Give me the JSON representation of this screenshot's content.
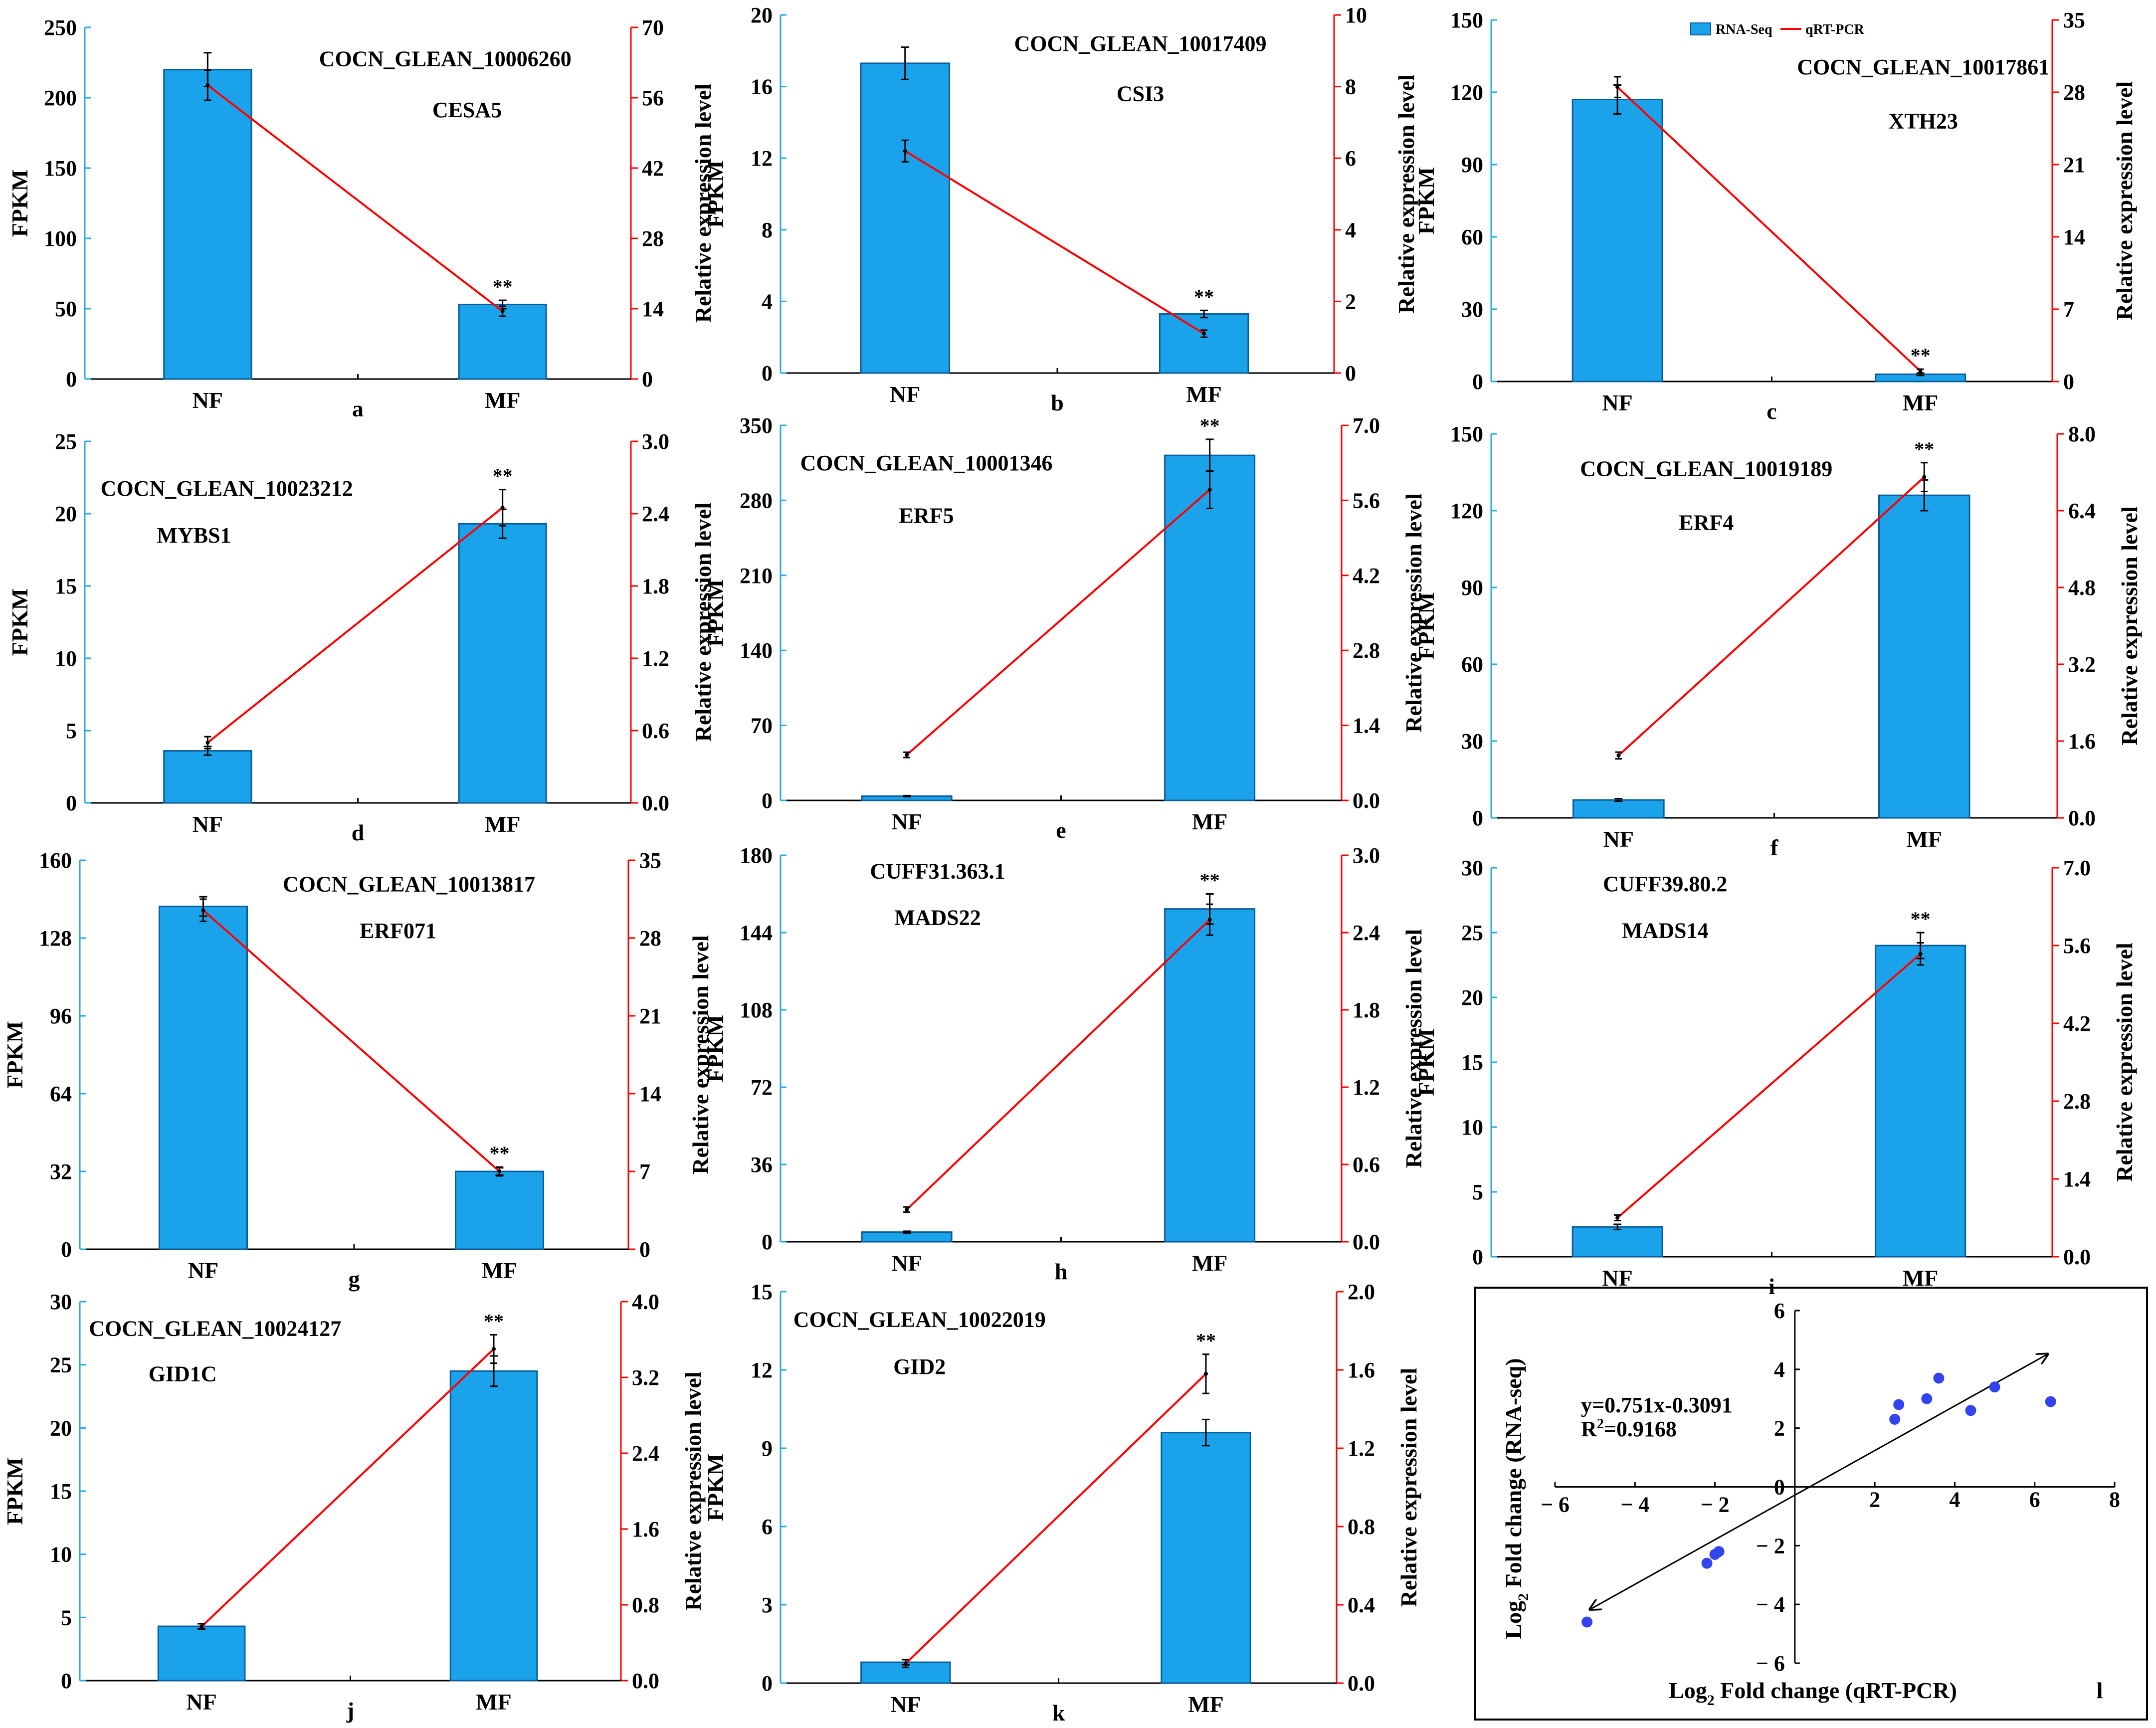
{
  "legend": {
    "bar_label": "RNA-Seq",
    "line_label": "qRT-PCR"
  },
  "colors": {
    "bar_fill": "#1aa3ea",
    "bar_stroke": "#0a5c9a",
    "line": "#ff0000",
    "left_axis": "#29a8e0",
    "right_axis": "#ff0000",
    "scatter_point": "#3344ee"
  },
  "chart_data": [
    {
      "panel": "a",
      "type": "bar+line",
      "gene_id": "COCN_GLEAN_10006260",
      "gene_name": "CESA5",
      "categories": [
        "NF",
        "MF"
      ],
      "ylabel": "FPKM",
      "y2label": "Relative expression level",
      "ylim": [
        0,
        250
      ],
      "yticks": [
        "0",
        "50",
        "100",
        "150",
        "200",
        "250"
      ],
      "y2lim": [
        0,
        70
      ],
      "y2ticks": [
        "0",
        "14",
        "28",
        "42",
        "56",
        "70"
      ],
      "bar_values": [
        220,
        53
      ],
      "bar_errors": [
        12,
        3
      ],
      "line_values": [
        58.5,
        13.5
      ],
      "line_errors": [
        3,
        1
      ],
      "significance": [
        "",
        "**"
      ]
    },
    {
      "panel": "b",
      "type": "bar+line",
      "gene_id": "COCN_GLEAN_10017409",
      "gene_name": "CSI3",
      "categories": [
        "NF",
        "MF"
      ],
      "ylabel": "FPKM",
      "y2label": "Relative expression level",
      "ylim": [
        0,
        20
      ],
      "yticks": [
        "0",
        "4",
        "8",
        "12",
        "16",
        "20"
      ],
      "y2lim": [
        0,
        10
      ],
      "y2ticks": [
        "0",
        "2",
        "4",
        "6",
        "8",
        "10"
      ],
      "bar_values": [
        17.3,
        3.3
      ],
      "bar_errors": [
        0.9,
        0.2
      ],
      "line_values": [
        6.2,
        1.1
      ],
      "line_errors": [
        0.3,
        0.1
      ],
      "significance": [
        "",
        "**"
      ]
    },
    {
      "panel": "c",
      "type": "bar+line",
      "gene_id": "COCN_GLEAN_10017861",
      "gene_name": "XTH23",
      "categories": [
        "NF",
        "MF"
      ],
      "ylabel": "FPKM",
      "y2label": "Relative expression level",
      "ylim": [
        0,
        150
      ],
      "yticks": [
        "0",
        "30",
        "60",
        "90",
        "120",
        "150"
      ],
      "y2lim": [
        0,
        35
      ],
      "y2ticks": [
        "0",
        "7",
        "14",
        "21",
        "28",
        "35"
      ],
      "bar_values": [
        117,
        3
      ],
      "bar_errors": [
        6,
        0.5
      ],
      "line_values": [
        28.5,
        1.0
      ],
      "line_errors": [
        1.0,
        0.2
      ],
      "significance": [
        "",
        "**"
      ]
    },
    {
      "panel": "d",
      "type": "bar+line",
      "gene_id": "COCN_GLEAN_10023212",
      "gene_name": "MYBS1",
      "categories": [
        "NF",
        "MF"
      ],
      "ylabel": "FPKM",
      "y2label": "Relative expression level",
      "ylim": [
        0,
        25
      ],
      "yticks": [
        "0",
        "5",
        "10",
        "15",
        "20",
        "25"
      ],
      "y2lim": [
        0,
        3.0
      ],
      "y2ticks": [
        "0.0",
        "0.6",
        "1.2",
        "1.8",
        "2.4",
        "3.0"
      ],
      "bar_values": [
        3.6,
        19.3
      ],
      "bar_errors": [
        0.3,
        1.0
      ],
      "line_values": [
        0.5,
        2.45
      ],
      "line_errors": [
        0.05,
        0.15
      ],
      "significance": [
        "",
        "**"
      ]
    },
    {
      "panel": "e",
      "type": "bar+line",
      "gene_id": "COCN_GLEAN_10001346",
      "gene_name": "ERF5",
      "categories": [
        "NF",
        "MF"
      ],
      "ylabel": "FPKM",
      "y2label": "Relative expression level",
      "ylim": [
        0,
        350
      ],
      "yticks": [
        "0",
        "70",
        "140",
        "210",
        "280",
        "350"
      ],
      "y2lim": [
        0,
        7.0
      ],
      "y2ticks": [
        "0.0",
        "1.4",
        "2.8",
        "4.2",
        "5.6",
        "7.0"
      ],
      "bar_values": [
        4,
        322
      ],
      "bar_errors": [
        0.5,
        15
      ],
      "line_values": [
        0.85,
        5.8
      ],
      "line_errors": [
        0.05,
        0.35
      ],
      "significance": [
        "",
        "**"
      ]
    },
    {
      "panel": "f",
      "type": "bar+line",
      "gene_id": "COCN_GLEAN_10019189",
      "gene_name": "ERF4",
      "categories": [
        "NF",
        "MF"
      ],
      "ylabel": "FPKM",
      "y2label": "Relative expression level",
      "ylim": [
        0,
        150
      ],
      "yticks": [
        "0",
        "30",
        "60",
        "90",
        "120",
        "150"
      ],
      "y2lim": [
        0,
        8.0
      ],
      "y2ticks": [
        "0.0",
        "1.6",
        "3.2",
        "4.8",
        "6.4",
        "8.0"
      ],
      "bar_values": [
        7,
        126
      ],
      "bar_errors": [
        0.5,
        6
      ],
      "line_values": [
        1.3,
        7.1
      ],
      "line_errors": [
        0.07,
        0.3
      ],
      "significance": [
        "",
        "**"
      ]
    },
    {
      "panel": "g",
      "type": "bar+line",
      "gene_id": "COCN_GLEAN_10013817",
      "gene_name": "ERF071",
      "categories": [
        "NF",
        "MF"
      ],
      "ylabel": "FPKM",
      "y2label": "Relative expression level",
      "ylim": [
        0,
        160
      ],
      "yticks": [
        "0",
        "32",
        "64",
        "96",
        "128",
        "160"
      ],
      "y2lim": [
        0,
        35
      ],
      "y2ticks": [
        "0",
        "7",
        "14",
        "21",
        "28",
        "35"
      ],
      "bar_values": [
        141,
        32
      ],
      "bar_errors": [
        4,
        1.5
      ],
      "line_values": [
        30.5,
        7.0
      ],
      "line_errors": [
        1.0,
        0.4
      ],
      "significance": [
        "",
        "**"
      ]
    },
    {
      "panel": "h",
      "type": "bar+line",
      "gene_id": "CUFF31.363.1",
      "gene_name": "MADS22",
      "categories": [
        "NF",
        "MF"
      ],
      "ylabel": "FPKM",
      "y2label": "Relative expression level",
      "ylim": [
        0,
        180
      ],
      "yticks": [
        "0",
        "36",
        "72",
        "108",
        "144",
        "180"
      ],
      "y2lim": [
        0,
        3.0
      ],
      "y2ticks": [
        "0.0",
        "0.6",
        "1.2",
        "1.8",
        "2.4",
        "3.0"
      ],
      "bar_values": [
        4.5,
        155
      ],
      "bar_errors": [
        0.4,
        7
      ],
      "line_values": [
        0.25,
        2.5
      ],
      "line_errors": [
        0.02,
        0.12
      ],
      "significance": [
        "",
        "**"
      ]
    },
    {
      "panel": "i",
      "type": "bar+line",
      "gene_id": "CUFF39.80.2",
      "gene_name": "MADS14",
      "categories": [
        "NF",
        "MF"
      ],
      "ylabel": "FPKM",
      "y2label": "Relative expression level",
      "ylim": [
        0,
        30
      ],
      "yticks": [
        "0",
        "5",
        "10",
        "15",
        "20",
        "25",
        "30"
      ],
      "y2lim": [
        0,
        7.0
      ],
      "y2ticks": [
        "0.0",
        "1.4",
        "2.8",
        "4.2",
        "5.6",
        "7.0"
      ],
      "bar_values": [
        2.3,
        24
      ],
      "bar_errors": [
        0.2,
        1.0
      ],
      "line_values": [
        0.7,
        5.45
      ],
      "line_errors": [
        0.05,
        0.2
      ],
      "significance": [
        "",
        "**"
      ]
    },
    {
      "panel": "j",
      "type": "bar+line",
      "gene_id": "COCN_GLEAN_10024127",
      "gene_name": "GID1C",
      "categories": [
        "NF",
        "MF"
      ],
      "ylabel": "FPKM",
      "y2label": "Relative expression level",
      "ylim": [
        0,
        30
      ],
      "yticks": [
        "0",
        "5",
        "10",
        "15",
        "20",
        "25",
        "30"
      ],
      "y2lim": [
        0,
        4.0
      ],
      "y2ticks": [
        "0.0",
        "0.8",
        "1.6",
        "2.4",
        "3.2",
        "4.0"
      ],
      "bar_values": [
        4.3,
        24.5
      ],
      "bar_errors": [
        0.2,
        1.2
      ],
      "line_values": [
        0.57,
        3.5
      ],
      "line_errors": [
        0.03,
        0.15
      ],
      "significance": [
        "",
        "**"
      ]
    },
    {
      "panel": "k",
      "type": "bar+line",
      "gene_id": "COCN_GLEAN_10022019",
      "gene_name": "GID2",
      "categories": [
        "NF",
        "MF"
      ],
      "ylabel": "FPKM",
      "y2label": "Relative expression level",
      "ylim": [
        0,
        15
      ],
      "yticks": [
        "0",
        "3",
        "6",
        "9",
        "12",
        "15"
      ],
      "y2lim": [
        0,
        2.0
      ],
      "y2ticks": [
        "0.0",
        "0.4",
        "0.8",
        "1.2",
        "1.6",
        "2.0"
      ],
      "bar_values": [
        0.8,
        9.6
      ],
      "bar_errors": [
        0.1,
        0.5
      ],
      "line_values": [
        0.1,
        1.58
      ],
      "line_errors": [
        0.02,
        0.1
      ],
      "significance": [
        "",
        "**"
      ]
    },
    {
      "panel": "l",
      "type": "scatter",
      "xlabel_prefix": "Log",
      "xlabel_sub": "2",
      "xlabel_rest": " Fold change  (qRT-PCR)",
      "ylabel_prefix": "Log",
      "ylabel_sub": "2",
      "ylabel_rest": " Fold change (RNA-seq)",
      "equation": "y=0.751x-0.3091",
      "r2_prefix": "R",
      "r2_sup": "2",
      "r2_rest": "=0.9168",
      "xlim": [
        -6,
        8
      ],
      "ylim": [
        -6,
        6
      ],
      "xticks": [
        -6,
        -4,
        -2,
        2,
        4,
        6,
        8
      ],
      "xtick_labels": [
        "− 6",
        "− 4",
        "− 2",
        "2",
        "4",
        "6",
        "8"
      ],
      "yticks": [
        -6,
        -4,
        -2,
        0,
        2,
        4,
        6
      ],
      "ytick_labels": [
        "− 6",
        "− 4",
        "− 2",
        "0",
        "2",
        "4",
        "6"
      ],
      "points": [
        [
          -5.2,
          -4.6
        ],
        [
          -2.2,
          -2.6
        ],
        [
          -2.0,
          -2.3
        ],
        [
          -1.9,
          -2.2
        ],
        [
          2.5,
          2.3
        ],
        [
          2.6,
          2.8
        ],
        [
          3.3,
          3.0
        ],
        [
          3.6,
          3.7
        ],
        [
          4.4,
          2.6
        ],
        [
          5.0,
          3.4
        ],
        [
          6.4,
          2.9
        ]
      ],
      "fit_line": [
        [
          -5.1,
          -4.15
        ],
        [
          6.3,
          4.5
        ]
      ]
    }
  ]
}
